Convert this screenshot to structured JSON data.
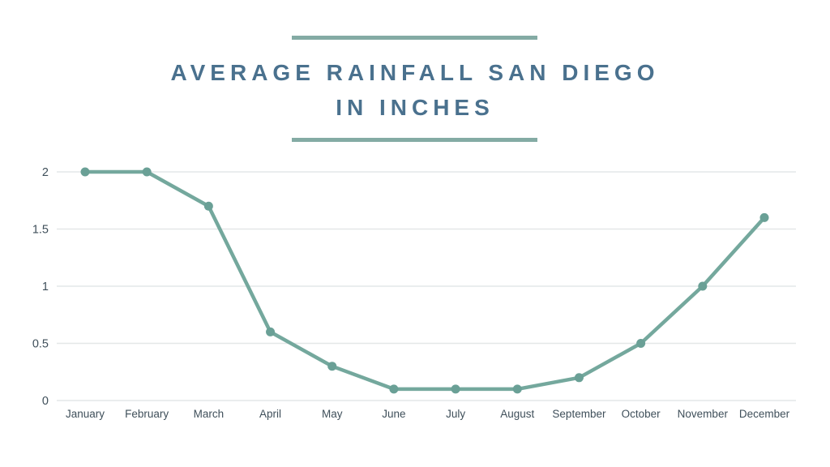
{
  "title": {
    "line1": "AVERAGE RAINFALL SAN DIEGO",
    "line2": "IN INCHES"
  },
  "colors": {
    "background": "#ffffff",
    "title_text": "#4a718e",
    "accent_rule": "#84aba4",
    "line": "#74a89d",
    "marker": "#6aa096",
    "grid": "#e4e7e8",
    "axis_label": "#3f4f5a"
  },
  "chart_data": {
    "type": "line",
    "title": "Average Rainfall San Diego in Inches",
    "categories": [
      "January",
      "February",
      "March",
      "April",
      "May",
      "June",
      "July",
      "August",
      "September",
      "October",
      "November",
      "December"
    ],
    "values": [
      2,
      2,
      1.7,
      0.6,
      0.3,
      0.1,
      0.1,
      0.1,
      0.2,
      0.5,
      1,
      1.6
    ],
    "xlabel": "",
    "ylabel": "",
    "ylim": [
      0,
      2
    ],
    "yticks": [
      0,
      0.5,
      1,
      1.5,
      2
    ],
    "grid": true,
    "legend": false,
    "marker": "circle"
  }
}
